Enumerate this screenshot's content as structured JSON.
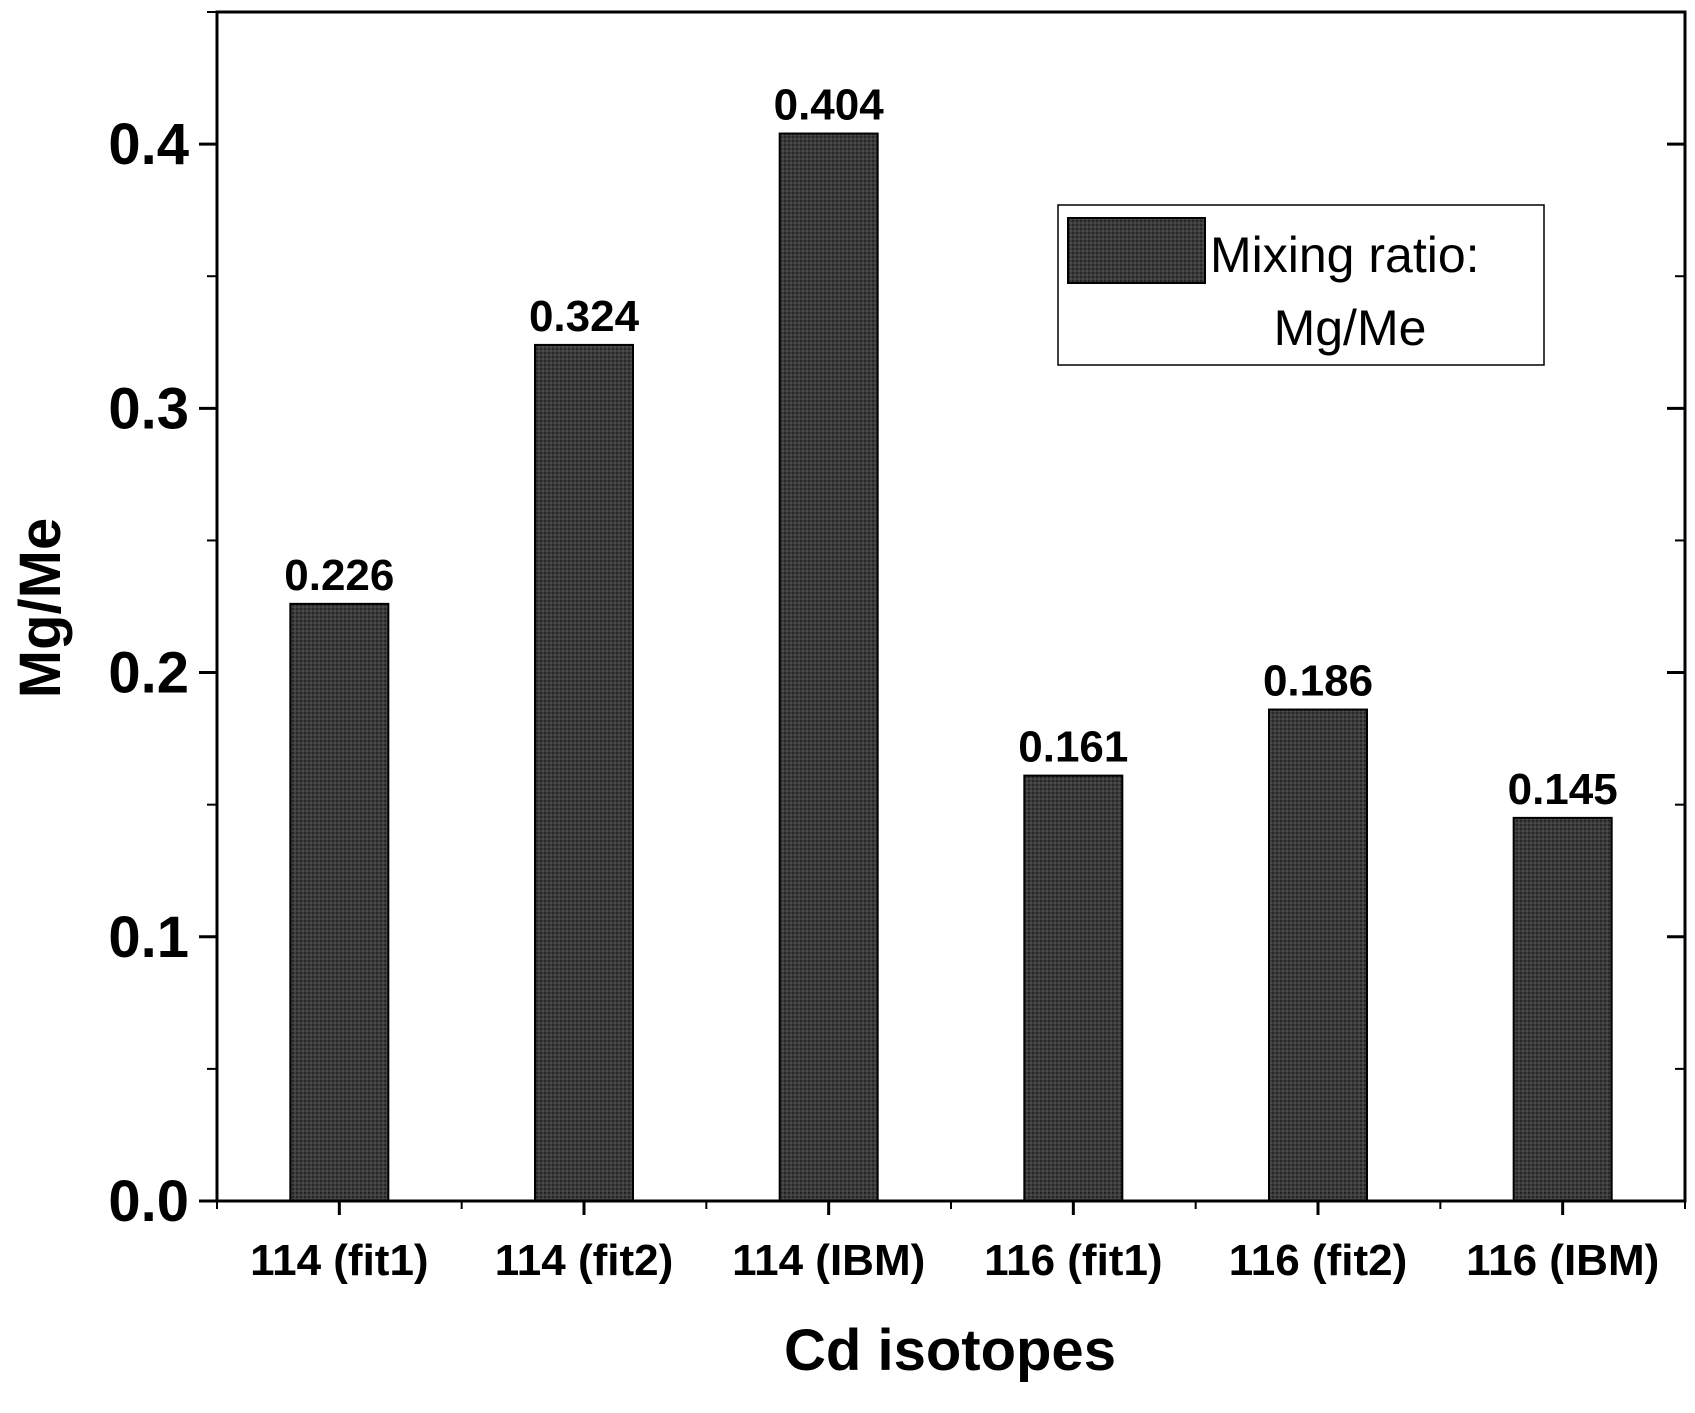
{
  "chart_data": {
    "type": "bar",
    "categories": [
      "114 (fit1)",
      "114 (fit2)",
      "114 (IBM)",
      "116 (fit1)",
      "116 (fit2)",
      "116 (IBM)"
    ],
    "values": [
      0.226,
      0.324,
      0.404,
      0.161,
      0.186,
      0.145
    ],
    "data_labels": [
      "0.226",
      "0.324",
      "0.404",
      "0.161",
      "0.186",
      "0.145"
    ],
    "title": "",
    "xlabel": "Cd isotopes",
    "ylabel": "Mg/Me",
    "ylim": [
      0,
      0.45
    ],
    "yticks": [
      0.0,
      0.1,
      0.2,
      0.3,
      0.4
    ],
    "ytick_labels": [
      "0.0",
      "0.1",
      "0.2",
      "0.3",
      "0.4"
    ],
    "legend": {
      "placement": "top-right",
      "line1": "Mixing ratio:",
      "line2": "Mg/Me"
    },
    "bar_color": "#3a3a3a",
    "grid": false
  }
}
